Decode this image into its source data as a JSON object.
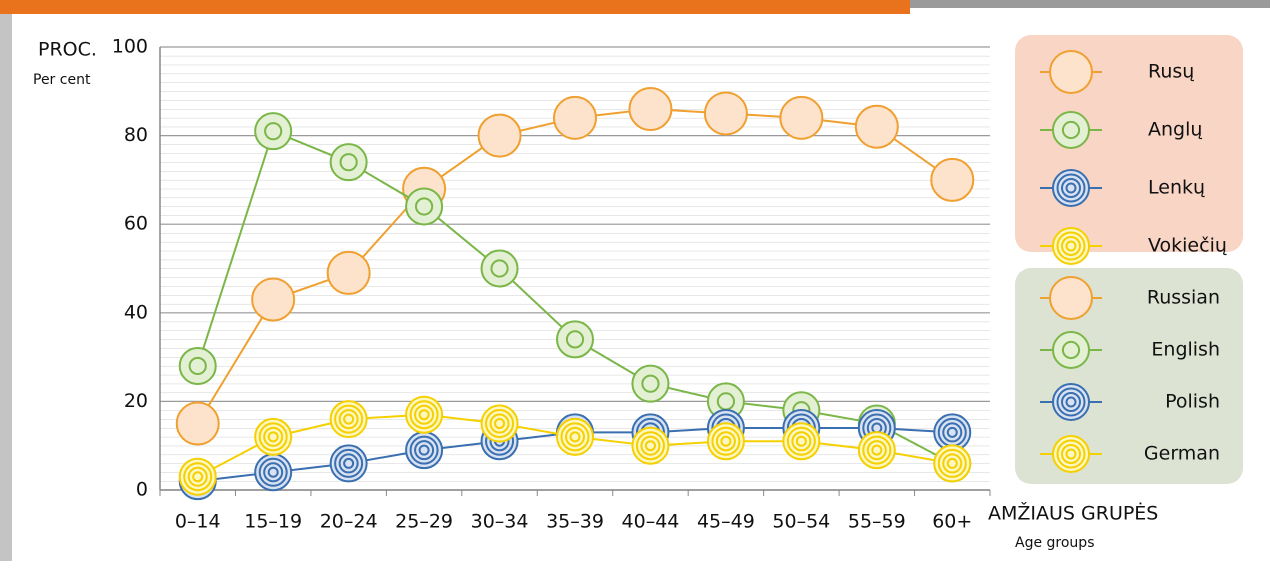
{
  "chart_data": {
    "type": "line",
    "y_label": "PROC.",
    "y_label_en": "Per cent",
    "x_label": "AMŽIAUS GRUPĖS",
    "x_label_en": "Age groups",
    "categories": [
      "0–14",
      "15–19",
      "20–24",
      "25–29",
      "30–34",
      "35–39",
      "40–44",
      "45–49",
      "50–54",
      "55–59",
      "60+"
    ],
    "series": [
      {
        "name": "Russian",
        "name_lt": "Rusų",
        "color": "#f0a030",
        "values": [
          15,
          43,
          49,
          68,
          80,
          84,
          86,
          85,
          84,
          82,
          70
        ]
      },
      {
        "name": "English",
        "name_lt": "Anglų",
        "color": "#7ab648",
        "values": [
          28,
          81,
          74,
          64,
          50,
          34,
          24,
          20,
          18,
          15,
          6
        ]
      },
      {
        "name": "Polish",
        "name_lt": "Lenkų",
        "color": "#3a6fb0",
        "values": [
          2,
          4,
          6,
          9,
          11,
          13,
          13,
          14,
          14,
          14,
          13
        ]
      },
      {
        "name": "German",
        "name_lt": "Vokiečių",
        "color": "#f5d000",
        "values": [
          3,
          12,
          16,
          17,
          15,
          12,
          10,
          11,
          11,
          9,
          6
        ]
      }
    ],
    "ylim": [
      0,
      100
    ],
    "yticks": [
      0,
      20,
      40,
      60,
      80,
      100
    ],
    "grid": true
  }
}
